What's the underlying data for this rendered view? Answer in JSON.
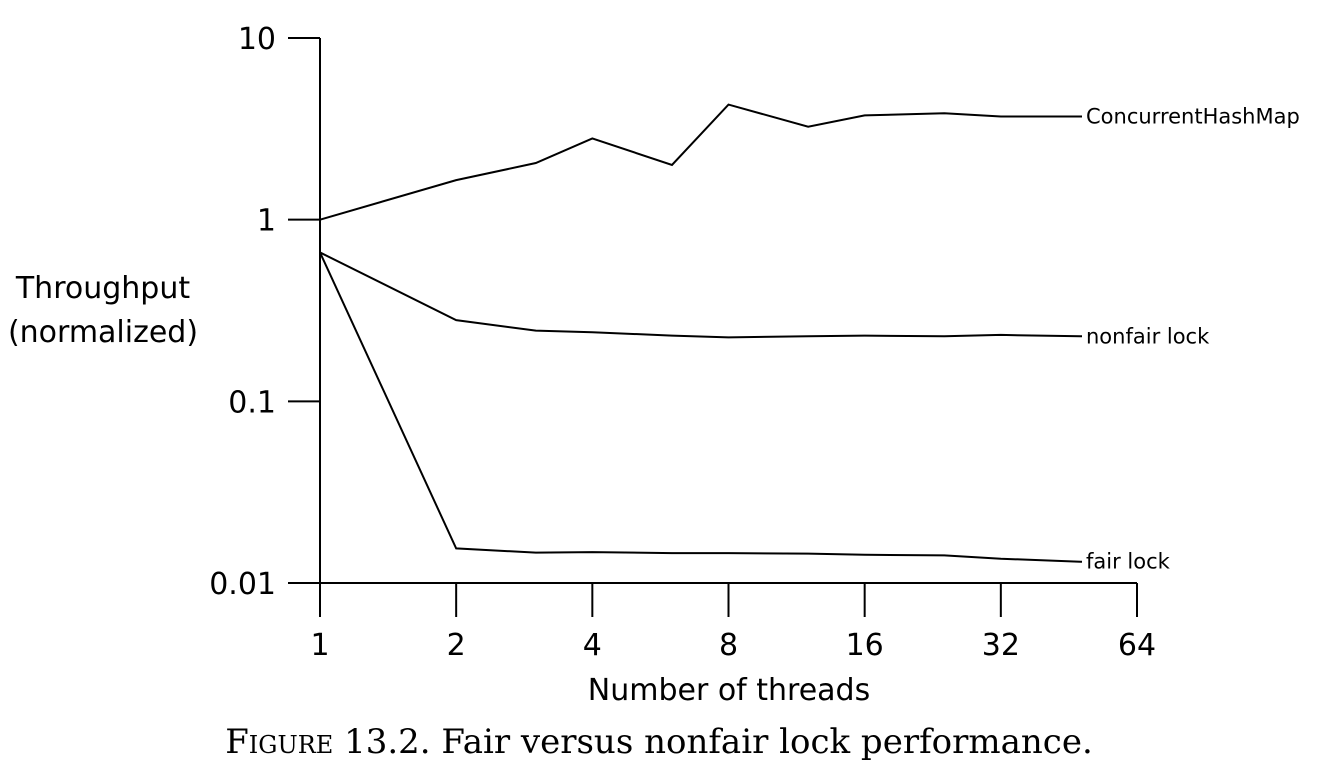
{
  "caption": {
    "prefix": "Figure",
    "text": "13.2. Fair versus nonfair lock performance."
  },
  "chart_data": {
    "type": "line",
    "title": "",
    "xlabel": "Number of threads",
    "ylabel_lines": [
      "Throughput",
      "(normalized)"
    ],
    "x_scale": "log2",
    "y_scale": "log10",
    "xlim": [
      1,
      64
    ],
    "ylim": [
      0.01,
      10
    ],
    "x_ticks": [
      1,
      2,
      4,
      8,
      16,
      32,
      64
    ],
    "x_tick_labels": [
      "1",
      "2",
      "4",
      "8",
      "16",
      "32",
      "64"
    ],
    "y_ticks": [
      0.01,
      0.1,
      1,
      10
    ],
    "y_tick_labels": [
      "0.01",
      "0.1",
      "1",
      "10"
    ],
    "grid": false,
    "legend": "inline labels at right end of each line",
    "series": [
      {
        "name": "ConcurrentHashMap",
        "x": [
          1,
          2,
          3,
          4,
          6,
          8,
          12,
          16,
          24,
          32,
          48
        ],
        "y": [
          1.0,
          1.65,
          2.05,
          2.8,
          2.0,
          4.3,
          3.25,
          3.75,
          3.85,
          3.7,
          3.7
        ]
      },
      {
        "name": "nonfair lock",
        "x": [
          1,
          2,
          3,
          4,
          6,
          8,
          12,
          16,
          24,
          32,
          48
        ],
        "y": [
          0.66,
          0.28,
          0.245,
          0.24,
          0.23,
          0.225,
          0.228,
          0.23,
          0.228,
          0.232,
          0.228
        ]
      },
      {
        "name": "fair lock",
        "x": [
          1,
          2,
          3,
          4,
          6,
          8,
          12,
          16,
          24,
          32,
          48
        ],
        "y": [
          0.66,
          0.0155,
          0.0147,
          0.0148,
          0.0146,
          0.0146,
          0.0145,
          0.0143,
          0.0142,
          0.0136,
          0.0131
        ]
      }
    ]
  }
}
